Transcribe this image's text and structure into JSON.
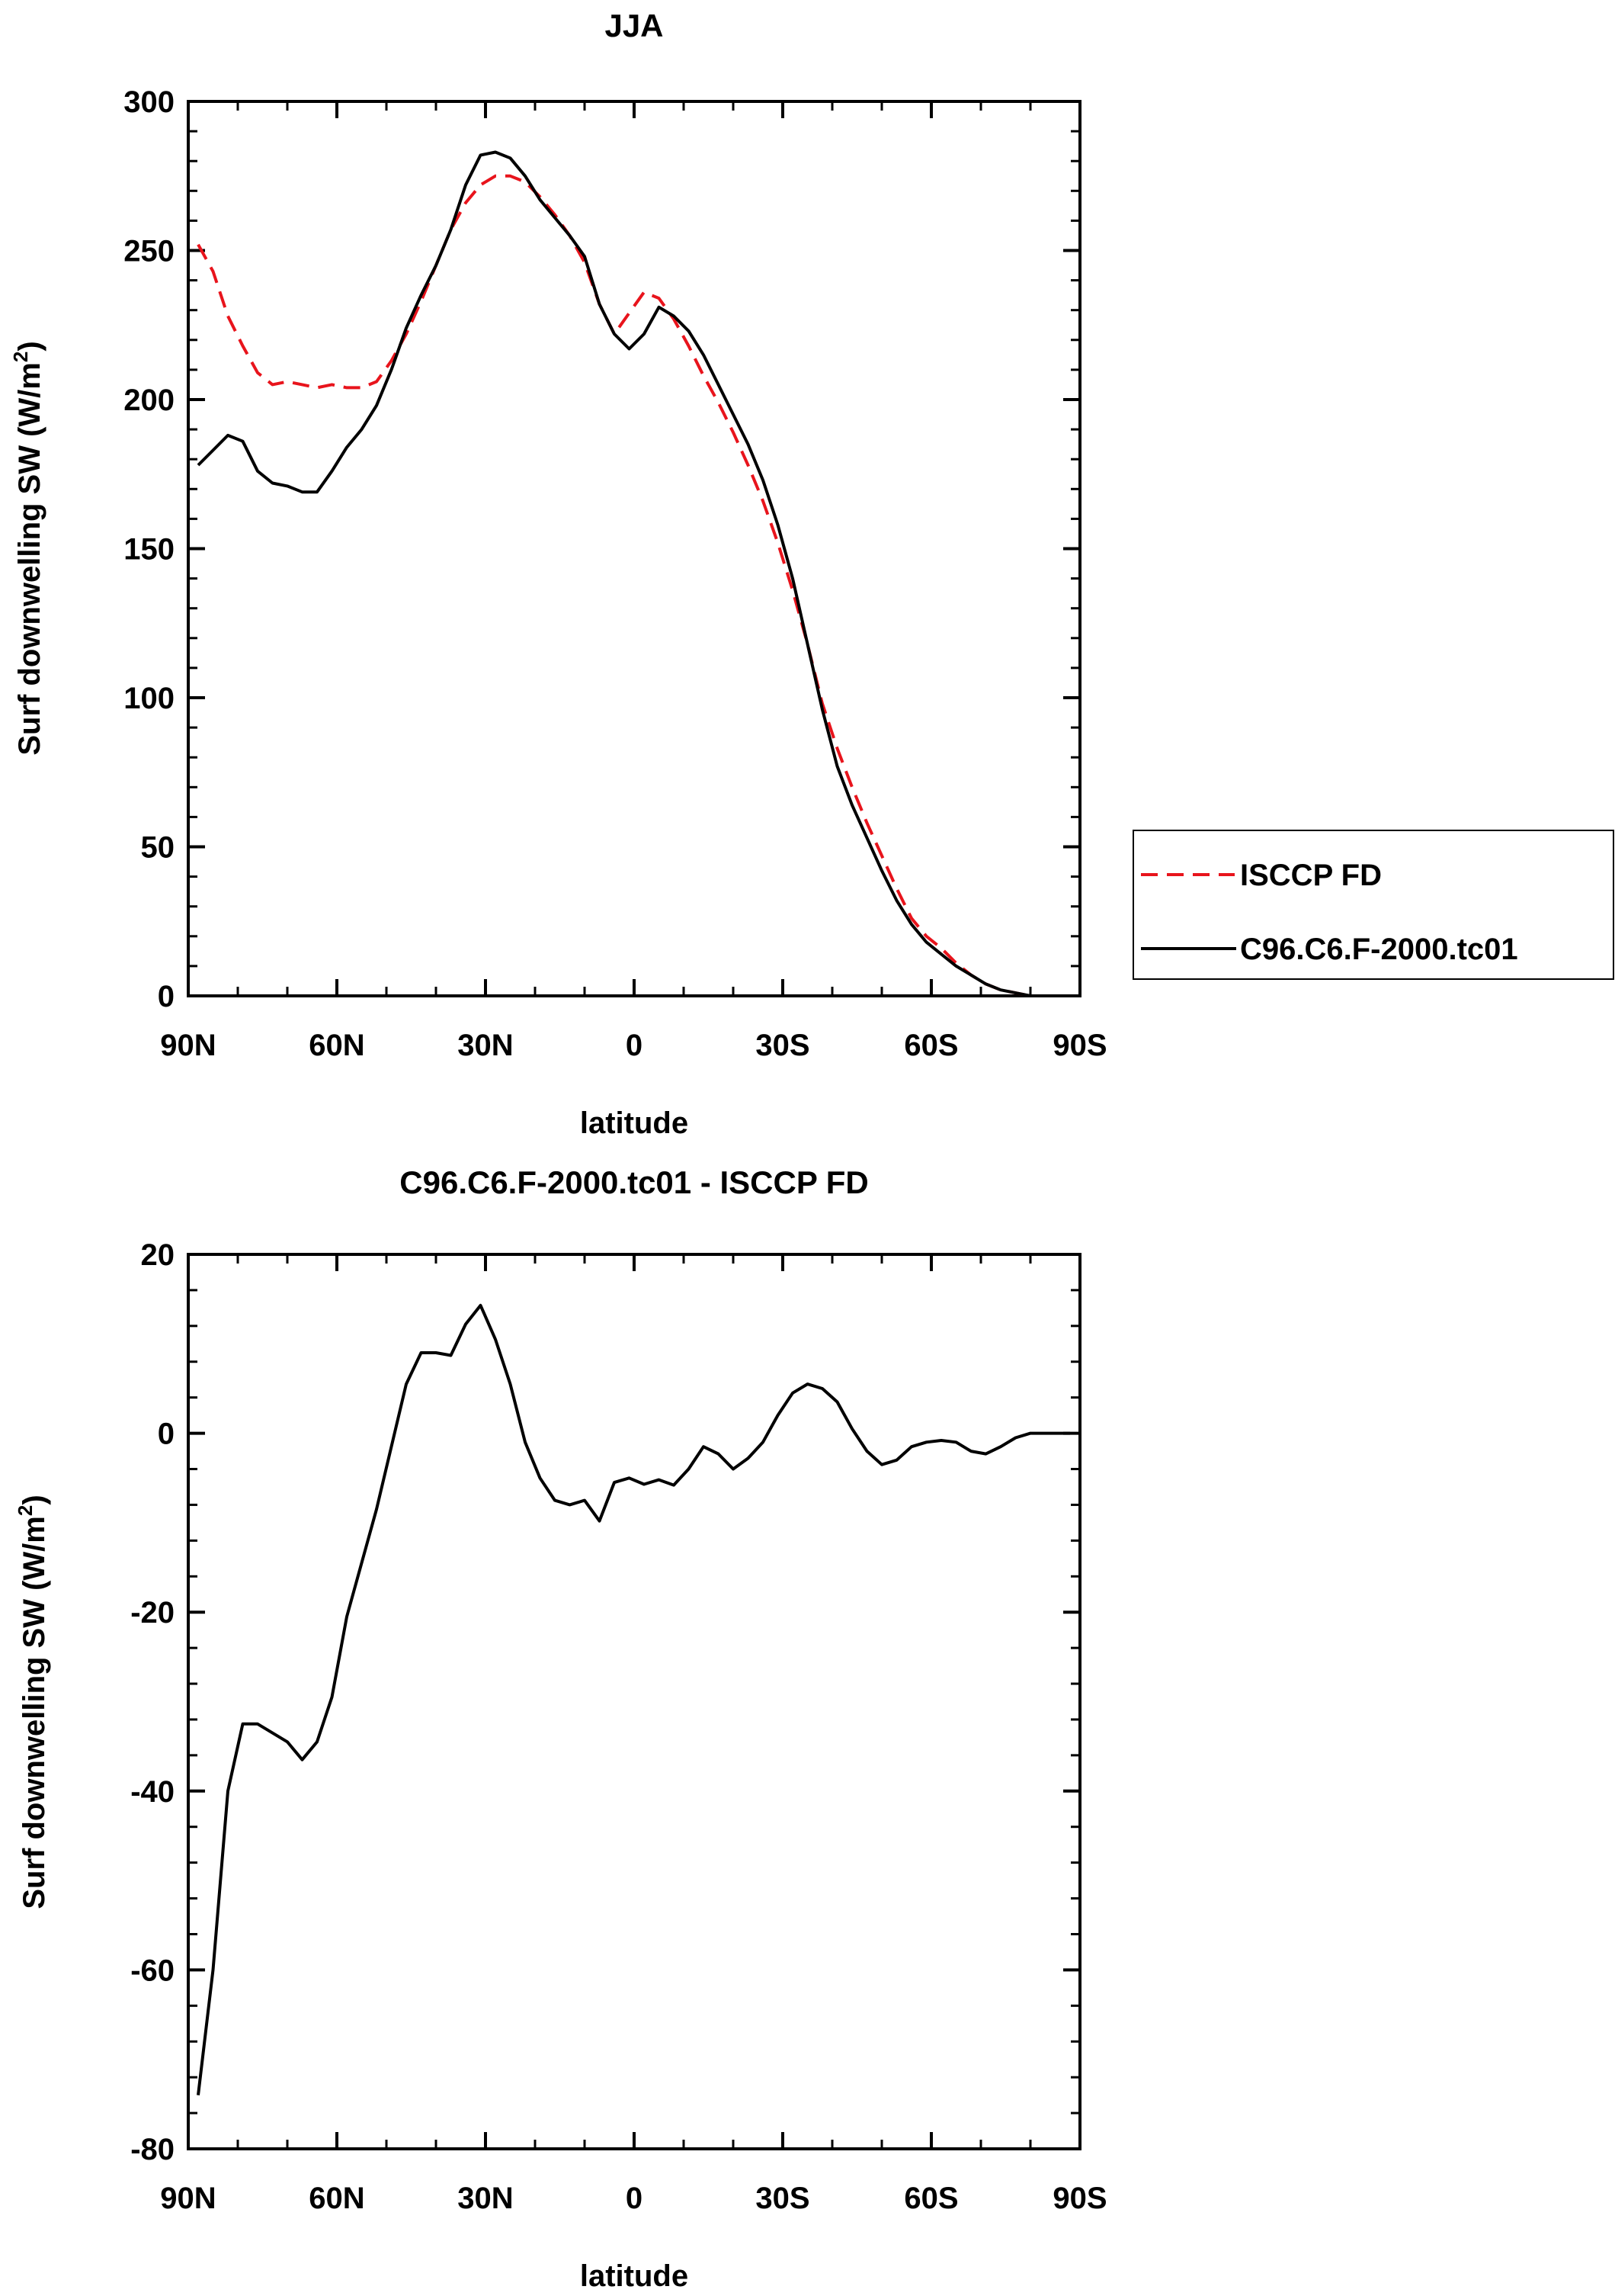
{
  "chart_data": [
    {
      "type": "line",
      "title": "JJA",
      "xlabel": "latitude",
      "ylabel": "Surf downwelling SW (W/m",
      "ylabel_sup": "2",
      "ylabel_close": ")",
      "xlim": [
        90,
        -90
      ],
      "ylim": [
        0,
        300
      ],
      "xticks": [
        90,
        60,
        30,
        0,
        -30,
        -60,
        -90
      ],
      "xtick_labels": [
        "90N",
        "60N",
        "30N",
        "0",
        "30S",
        "60S",
        "90S"
      ],
      "yticks": [
        0,
        50,
        100,
        150,
        200,
        250,
        300
      ],
      "ytick_labels": [
        "0",
        "50",
        "100",
        "150",
        "200",
        "250",
        "300"
      ],
      "legend": {
        "placement": "right",
        "entries": [
          "ISCCP FD",
          "C96.C6.F-2000.tc01"
        ]
      },
      "series": [
        {
          "name": "ISCCP FD",
          "color": "#e8141c",
          "dash": "dashed",
          "x": [
            88,
            85,
            82,
            79,
            76,
            73,
            70,
            67,
            64,
            61,
            58,
            55,
            52,
            49,
            46,
            43,
            40,
            37,
            34,
            31,
            28,
            25,
            22,
            19,
            16,
            13,
            10,
            7,
            4,
            1,
            -2,
            -5,
            -8,
            -11,
            -14,
            -17,
            -20,
            -23,
            -26,
            -29,
            -32,
            -35,
            -38,
            -41,
            -44,
            -47,
            -50,
            -53,
            -56,
            -59,
            -62,
            -65,
            -68,
            -71,
            -74,
            -77,
            -80,
            -83,
            -86,
            -88
          ],
          "values": [
            252,
            243,
            228,
            218,
            209,
            205,
            206,
            205,
            204,
            205,
            204,
            204,
            206,
            213,
            222,
            233,
            245,
            257,
            266,
            272,
            275,
            275,
            273,
            268,
            262,
            255,
            246,
            232,
            222,
            229,
            236,
            234,
            227,
            218,
            208,
            199,
            189,
            178,
            166,
            152,
            136,
            118,
            98,
            83,
            70,
            58,
            47,
            36,
            26,
            20,
            16,
            11,
            7,
            4,
            2,
            1,
            0,
            0,
            0,
            0
          ]
        },
        {
          "name": "C96.C6.F-2000.tc01",
          "color": "#000000",
          "dash": "solid",
          "x": [
            88,
            85,
            82,
            79,
            76,
            73,
            70,
            67,
            64,
            61,
            58,
            55,
            52,
            49,
            46,
            43,
            40,
            37,
            34,
            31,
            28,
            25,
            22,
            19,
            16,
            13,
            10,
            7,
            4,
            1,
            -2,
            -5,
            -8,
            -11,
            -14,
            -17,
            -20,
            -23,
            -26,
            -29,
            -32,
            -35,
            -38,
            -41,
            -44,
            -47,
            -50,
            -53,
            -56,
            -59,
            -62,
            -65,
            -68,
            -71,
            -74,
            -77,
            -80,
            -83,
            -86,
            -88
          ],
          "values": [
            178,
            183,
            188,
            186,
            176,
            172,
            171,
            169,
            169,
            176,
            184,
            190,
            198,
            210,
            224,
            235,
            245,
            257,
            272,
            282,
            283,
            281,
            275,
            267,
            261,
            255,
            248,
            232,
            222,
            217,
            222,
            231,
            228,
            223,
            215,
            205,
            195,
            185,
            173,
            158,
            140,
            118,
            96,
            77,
            64,
            53,
            42,
            32,
            24,
            18,
            14,
            10,
            7,
            4,
            2,
            1,
            0,
            0,
            0,
            0
          ]
        }
      ]
    },
    {
      "type": "line",
      "title": "C96.C6.F-2000.tc01 - ISCCP FD",
      "xlabel": "latitude",
      "ylabel": "Surf downwelling SW (W/m",
      "ylabel_sup": "2",
      "ylabel_close": ")",
      "xlim": [
        90,
        -90
      ],
      "ylim": [
        -80,
        20
      ],
      "xticks": [
        90,
        60,
        30,
        0,
        -30,
        -60,
        -90
      ],
      "xtick_labels": [
        "90N",
        "60N",
        "30N",
        "0",
        "30S",
        "60S",
        "90S"
      ],
      "yticks": [
        -80,
        -60,
        -40,
        -20,
        0,
        20
      ],
      "ytick_labels": [
        "-80",
        "-60",
        "-40",
        "-20",
        "0",
        "20"
      ],
      "series": [
        {
          "name": "C96.C6.F-2000.tc01 - ISCCP FD",
          "color": "#000000",
          "dash": "solid",
          "x": [
            88,
            85,
            82,
            79,
            76,
            73,
            70,
            67,
            64,
            61,
            58,
            55,
            52,
            49,
            46,
            43,
            40,
            37,
            34,
            31,
            28,
            25,
            22,
            19,
            16,
            13,
            10,
            7,
            4,
            1,
            -2,
            -5,
            -8,
            -11,
            -14,
            -17,
            -20,
            -23,
            -26,
            -29,
            -32,
            -35,
            -38,
            -41,
            -44,
            -47,
            -50,
            -53,
            -56,
            -59,
            -62,
            -65,
            -68,
            -71,
            -74,
            -77,
            -80,
            -83,
            -86,
            -88
          ],
          "values": [
            -74,
            -60,
            -40,
            -32.5,
            -32.5,
            -33.5,
            -34.5,
            -36.5,
            -34.5,
            -29.5,
            -20.5,
            -14.5,
            -8.5,
            -1.5,
            5.5,
            9,
            9,
            8.7,
            12.2,
            14.3,
            10.5,
            5.5,
            -1,
            -5,
            -7.5,
            -8,
            -7.5,
            -9.8,
            -5.5,
            -5,
            -5.7,
            -5.2,
            -5.8,
            -4,
            -1.5,
            -2.3,
            -4,
            -2.8,
            -1,
            2,
            4.5,
            5.5,
            5,
            3.5,
            0.5,
            -2,
            -3.5,
            -3,
            -1.5,
            -1,
            -0.8,
            -1,
            -2,
            -2.3,
            -1.5,
            -0.5,
            0,
            0,
            0,
            0
          ]
        }
      ]
    }
  ]
}
